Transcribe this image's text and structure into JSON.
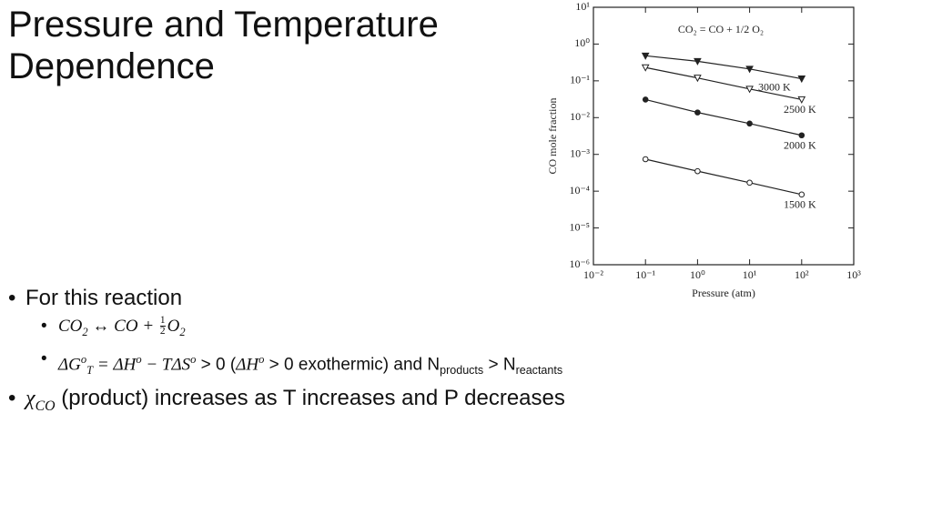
{
  "slide": {
    "title": "Pressure and Temperature Dependence",
    "bullets": [
      {
        "level": 0,
        "runs": [
          {
            "text": "For this reaction"
          }
        ]
      },
      {
        "level": 1,
        "runs": [
          {
            "text": "CO",
            "math": true
          },
          {
            "text": "2",
            "math": true,
            "pos": "sub"
          },
          {
            "text": " ↔ CO + ",
            "math": true
          },
          {
            "num": "1",
            "den": "2"
          },
          {
            "text": "O",
            "math": true
          },
          {
            "text": "2",
            "math": true,
            "pos": "sub"
          }
        ]
      },
      {
        "level": 1,
        "runs": [
          {
            "text": "ΔG",
            "math": true
          },
          {
            "text": "o",
            "math": true,
            "pos": "sup"
          },
          {
            "text": "T",
            "math": true,
            "pos": "sub"
          },
          {
            "text": " = ΔH",
            "math": true
          },
          {
            "text": "o",
            "math": true,
            "pos": "sup"
          },
          {
            "text": " − TΔS",
            "math": true
          },
          {
            "text": "o",
            "math": true,
            "pos": "sup"
          },
          {
            "text": "  > 0 ("
          },
          {
            "text": "ΔH",
            "math": true
          },
          {
            "text": "o",
            "math": true,
            "pos": "sup"
          },
          {
            "text": "  > 0 exothermic) and N"
          },
          {
            "text": "products",
            "pos": "sub"
          },
          {
            "text": " > N"
          },
          {
            "text": "reactants",
            "pos": "sub"
          }
        ]
      },
      {
        "level": 0,
        "runs": [
          {
            "text": "χ",
            "math": true
          },
          {
            "text": "CO",
            "math": true,
            "pos": "sub"
          },
          {
            "text": " (product) increases as T increases and P decreases"
          }
        ]
      }
    ]
  },
  "chart_data": {
    "type": "line",
    "annotation": "CO₂ = CO + 1/2 O₂",
    "x_label": "Pressure (atm)",
    "y_label": "CO mole fraction",
    "log_x": true,
    "log_y": true,
    "x": [
      0.1,
      1,
      10,
      100
    ],
    "series": [
      {
        "name": "3000 K",
        "color": "#222222",
        "marker": "triangle-filled",
        "values": [
          0.48,
          0.34,
          0.21,
          0.114
        ]
      },
      {
        "name": "2500 K",
        "color": "#222222",
        "marker": "triangle-open",
        "values": [
          0.23,
          0.12,
          0.06,
          0.031
        ]
      },
      {
        "name": "2000 K",
        "color": "#222222",
        "marker": "circle-filled",
        "values": [
          0.031,
          0.0138,
          0.0069,
          0.0033
        ]
      },
      {
        "name": "1500 K",
        "color": "#222222",
        "marker": "circle-open",
        "values": [
          0.00074,
          0.00035,
          0.00017,
          8.1e-05
        ]
      }
    ],
    "xlim": [
      0.01,
      1000
    ],
    "ylim": [
      1e-06,
      10
    ],
    "xticks": [
      {
        "value": 0.01,
        "label": "10⁻²"
      },
      {
        "value": 0.1,
        "label": "10⁻¹"
      },
      {
        "value": 1,
        "label": "10⁰"
      },
      {
        "value": 10,
        "label": "10¹"
      },
      {
        "value": 100,
        "label": "10²"
      },
      {
        "value": 1000,
        "label": "10³"
      }
    ],
    "yticks": [
      {
        "value": 1e-06,
        "label": "10⁻⁶"
      },
      {
        "value": 1e-05,
        "label": "10⁻⁵"
      },
      {
        "value": 0.0001,
        "label": "10⁻⁴"
      },
      {
        "value": 0.001,
        "label": "10⁻³"
      },
      {
        "value": 0.01,
        "label": "10⁻²"
      },
      {
        "value": 0.1,
        "label": "10⁻¹"
      },
      {
        "value": 1,
        "label": "10⁰"
      },
      {
        "value": 10,
        "label": "10¹"
      }
    ]
  }
}
